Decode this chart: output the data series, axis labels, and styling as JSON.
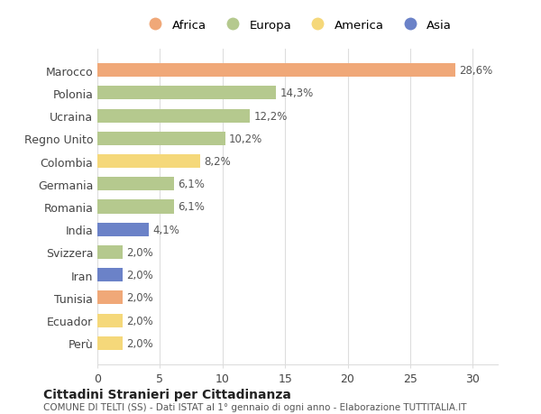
{
  "countries": [
    "Marocco",
    "Polonia",
    "Ucraina",
    "Regno Unito",
    "Colombia",
    "Germania",
    "Romania",
    "India",
    "Svizzera",
    "Iran",
    "Tunisia",
    "Ecuador",
    "Perù"
  ],
  "values": [
    28.6,
    14.3,
    12.2,
    10.2,
    8.2,
    6.1,
    6.1,
    4.1,
    2.0,
    2.0,
    2.0,
    2.0,
    2.0
  ],
  "labels": [
    "28,6%",
    "14,3%",
    "12,2%",
    "10,2%",
    "8,2%",
    "6,1%",
    "6,1%",
    "4,1%",
    "2,0%",
    "2,0%",
    "2,0%",
    "2,0%",
    "2,0%"
  ],
  "continents": [
    "Africa",
    "Europa",
    "Europa",
    "Europa",
    "America",
    "Europa",
    "Europa",
    "Asia",
    "Europa",
    "Asia",
    "Africa",
    "America",
    "America"
  ],
  "colors": {
    "Africa": "#F0A878",
    "Europa": "#B5C98E",
    "America": "#F5D87A",
    "Asia": "#6B82C8"
  },
  "legend_order": [
    "Africa",
    "Europa",
    "America",
    "Asia"
  ],
  "xlim": [
    0,
    32
  ],
  "xticks": [
    0,
    5,
    10,
    15,
    20,
    25,
    30
  ],
  "title": "Cittadini Stranieri per Cittadinanza",
  "subtitle": "COMUNE DI TELTI (SS) - Dati ISTAT al 1° gennaio di ogni anno - Elaborazione TUTTITALIA.IT",
  "bg_color": "#ffffff",
  "grid_color": "#dddddd",
  "bar_height": 0.6,
  "figsize": [
    6.0,
    4.6
  ],
  "dpi": 100
}
